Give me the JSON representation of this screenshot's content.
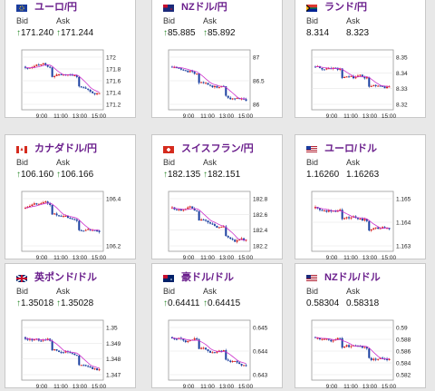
{
  "labels": {
    "bid": "Bid",
    "ask": "Ask"
  },
  "time_ticks": [
    "9:00",
    "11:00",
    "13:00",
    "15:00"
  ],
  "colors": {
    "up": "#d62020",
    "down": "#1b3fa0",
    "ma": "#cc33cc",
    "title": "#6a1e8c",
    "arrow": "#2a8a2a"
  },
  "panels": [
    {
      "title": "ユーロ/円",
      "flag": "eu",
      "bid": "171.240",
      "ask": "171.244",
      "bid_arrow": true,
      "ask_arrow": true,
      "yticks": [
        "172",
        "171.8",
        "171.6",
        "171.4",
        "171.2"
      ]
    },
    {
      "title": "NZドル/円",
      "flag": "nz",
      "bid": "85.885",
      "ask": "85.892",
      "bid_arrow": true,
      "ask_arrow": true,
      "yticks": [
        "87",
        "86.5",
        "86"
      ]
    },
    {
      "title": "ランド/円",
      "flag": "za",
      "bid": "8.314",
      "ask": "8.323",
      "bid_arrow": false,
      "ask_arrow": false,
      "yticks": [
        "8.35",
        "8.34",
        "8.33",
        "8.32"
      ]
    },
    {
      "title": "カナダドル/円",
      "flag": "ca",
      "bid": "106.160",
      "ask": "106.166",
      "bid_arrow": true,
      "ask_arrow": true,
      "yticks": [
        "106.4",
        "106.2"
      ]
    },
    {
      "title": "スイスフラン/円",
      "flag": "ch",
      "bid": "182.135",
      "ask": "182.151",
      "bid_arrow": true,
      "ask_arrow": true,
      "yticks": [
        "182.8",
        "182.6",
        "182.4",
        "182.2"
      ]
    },
    {
      "title": "ユーロ/ドル",
      "flag": "eu_us",
      "bid": "1.16260",
      "ask": "1.16263",
      "bid_arrow": false,
      "ask_arrow": false,
      "yticks": [
        "1.165",
        "1.164",
        "1.163"
      ]
    },
    {
      "title": "英ポンド/ドル",
      "flag": "gb",
      "bid": "1.35018",
      "ask": "1.35028",
      "bid_arrow": true,
      "ask_arrow": true,
      "yticks": [
        "1.35",
        "1.349",
        "1.348",
        "1.347"
      ]
    },
    {
      "title": "豪ドル/ドル",
      "flag": "au",
      "bid": "0.64411",
      "ask": "0.64415",
      "bid_arrow": true,
      "ask_arrow": true,
      "yticks": [
        "0.645",
        "0.644",
        "0.643"
      ]
    },
    {
      "title": "NZドル/ドル",
      "flag": "nz_us",
      "bid": "0.58304",
      "ask": "0.58318",
      "bid_arrow": false,
      "ask_arrow": false,
      "yticks": [
        "0.59",
        "0.588",
        "0.586",
        "0.584",
        "0.582"
      ]
    }
  ]
}
